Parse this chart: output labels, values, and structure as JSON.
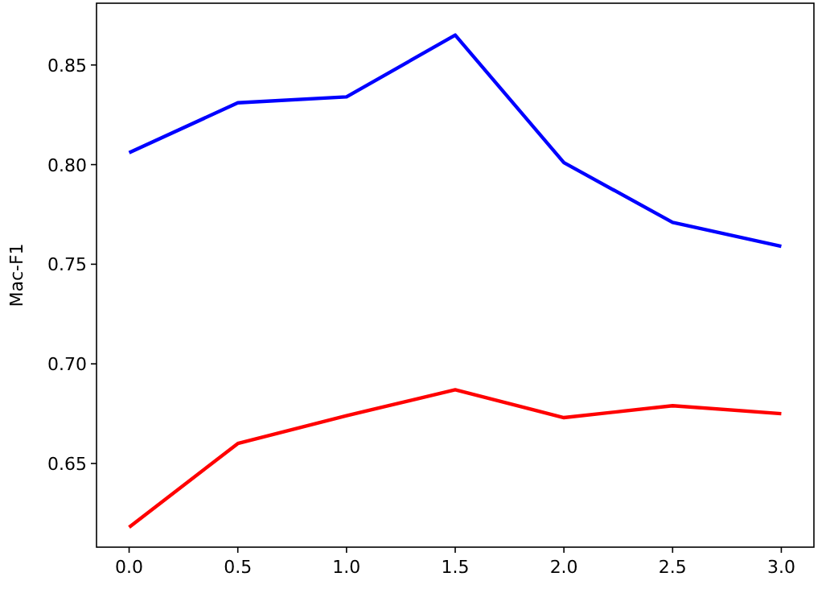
{
  "chart_data": {
    "type": "line",
    "ylabel": "Mac-F1",
    "x": [
      0,
      0.5,
      1,
      1.5,
      2,
      2.5,
      3
    ],
    "series": [
      {
        "color": "#0000ff",
        "values": [
          0.806,
          0.831,
          0.834,
          0.865,
          0.801,
          0.771,
          0.759
        ]
      },
      {
        "color": "#ff0000",
        "values": [
          0.618,
          0.66,
          0.674,
          0.687,
          0.673,
          0.679,
          0.675
        ]
      }
    ],
    "xlim": [
      -0.15,
      3.15
    ],
    "xticks": [
      {
        "value": 0,
        "label": "0.0"
      },
      {
        "value": 0.5,
        "label": "0.5"
      },
      {
        "value": 1,
        "label": "1.0"
      },
      {
        "value": 1.5,
        "label": "1.5"
      },
      {
        "value": 2,
        "label": "2.0"
      },
      {
        "value": 2.5,
        "label": "2.5"
      },
      {
        "value": 3,
        "label": "3.0"
      }
    ],
    "ylim": [
      0.608,
      0.881
    ],
    "yticks": [
      {
        "value": 0.65,
        "label": "0.65"
      },
      {
        "value": 0.7,
        "label": "0.70"
      },
      {
        "value": 0.75,
        "label": "0.75"
      },
      {
        "value": 0.8,
        "label": "0.80"
      },
      {
        "value": 0.85,
        "label": "0.85"
      }
    ],
    "line_style": "solid",
    "marker": "none"
  }
}
